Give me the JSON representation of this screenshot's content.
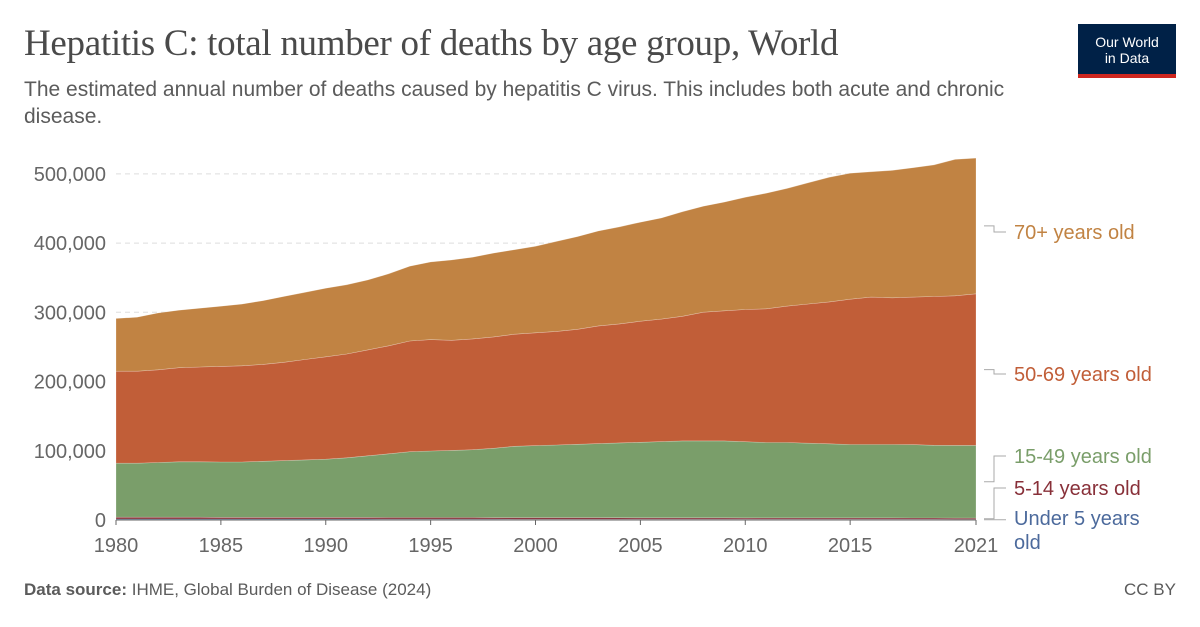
{
  "header": {
    "title": "Hepatitis C: total number of deaths by age group, World",
    "subtitle": "The estimated annual number of deaths caused by hepatitis C virus. This includes both acute and chronic disease.",
    "logo_line1": "Our World",
    "logo_line2": "in Data"
  },
  "footer": {
    "source_label": "Data source:",
    "source_text": "IHME, Global Burden of Disease (2024)",
    "license": "CC BY"
  },
  "colors": {
    "under5": "#4c6a9c",
    "age5_14": "#883039",
    "age15_49": "#7a9e6a",
    "age50_69": "#c15e38",
    "age70plus": "#c18343"
  },
  "chart_data": {
    "type": "area",
    "stacked": true,
    "x": [
      1980,
      1981,
      1982,
      1983,
      1984,
      1985,
      1986,
      1987,
      1988,
      1989,
      1990,
      1991,
      1992,
      1993,
      1994,
      1995,
      1996,
      1997,
      1998,
      1999,
      2000,
      2001,
      2002,
      2003,
      2004,
      2005,
      2006,
      2007,
      2008,
      2009,
      2010,
      2011,
      2012,
      2013,
      2014,
      2015,
      2016,
      2017,
      2018,
      2019,
      2020,
      2021
    ],
    "x_ticks": [
      1980,
      1985,
      1990,
      1995,
      2000,
      2005,
      2010,
      2015,
      2021
    ],
    "y_ticks": [
      0,
      100000,
      200000,
      300000,
      400000,
      500000
    ],
    "y_tick_labels": [
      "0",
      "100,000",
      "200,000",
      "300,000",
      "400,000",
      "500,000"
    ],
    "ylim": [
      0,
      520000
    ],
    "grid": true,
    "series": [
      {
        "name": "Under 5 years old",
        "color": "#4c6a9c",
        "values": [
          1500,
          1500,
          1500,
          1500,
          1500,
          1400,
          1400,
          1400,
          1400,
          1400,
          1400,
          1400,
          1400,
          1300,
          1300,
          1300,
          1300,
          1300,
          1300,
          1200,
          1200,
          1200,
          1200,
          1200,
          1200,
          1100,
          1100,
          1100,
          1100,
          1100,
          1100,
          1000,
          1000,
          1000,
          1000,
          1000,
          1000,
          1000,
          1000,
          1000,
          900,
          900
        ]
      },
      {
        "name": "5-14 years old",
        "color": "#883039",
        "values": [
          2500,
          2500,
          2500,
          2500,
          2500,
          2400,
          2400,
          2400,
          2400,
          2400,
          2400,
          2400,
          2300,
          2300,
          2300,
          2300,
          2300,
          2300,
          2200,
          2200,
          2200,
          2200,
          2200,
          2200,
          2100,
          2100,
          2100,
          2100,
          2100,
          2100,
          2000,
          2000,
          2000,
          2000,
          2000,
          2000,
          2000,
          2000,
          1900,
          1900,
          1900,
          1900
        ]
      },
      {
        "name": "15-49 years old",
        "color": "#7a9e6a",
        "values": [
          78000,
          78000,
          79000,
          80000,
          80000,
          80000,
          80000,
          81000,
          82000,
          83000,
          84000,
          86000,
          89000,
          92000,
          95000,
          96000,
          97000,
          98000,
          100000,
          103000,
          104000,
          105000,
          106000,
          107000,
          108000,
          109000,
          110000,
          111000,
          111000,
          111000,
          110000,
          109000,
          109000,
          108000,
          107000,
          106000,
          106000,
          106000,
          106000,
          105000,
          105000,
          105000
        ]
      },
      {
        "name": "50-69 years old",
        "color": "#c15e38",
        "values": [
          133000,
          133000,
          134000,
          136000,
          137000,
          138000,
          139000,
          140000,
          142000,
          145000,
          148000,
          150000,
          153000,
          156000,
          160000,
          161000,
          159000,
          160000,
          161000,
          162000,
          163000,
          164000,
          166000,
          170000,
          172000,
          175000,
          177000,
          180000,
          186000,
          188000,
          191000,
          193000,
          197000,
          201000,
          205000,
          210000,
          213000,
          212000,
          213000,
          215000,
          216000,
          219000
        ]
      },
      {
        "name": "70+ years old",
        "color": "#c18343",
        "values": [
          76000,
          78000,
          82000,
          83000,
          85000,
          87000,
          89000,
          92000,
          95000,
          97000,
          99000,
          100000,
          101000,
          104000,
          108000,
          112000,
          116000,
          118000,
          121000,
          122000,
          125000,
          130000,
          134000,
          137000,
          140000,
          143000,
          146000,
          151000,
          153000,
          157000,
          162000,
          167000,
          170000,
          175000,
          180000,
          182000,
          181000,
          184000,
          187000,
          190000,
          197000,
          196000
        ]
      }
    ]
  }
}
